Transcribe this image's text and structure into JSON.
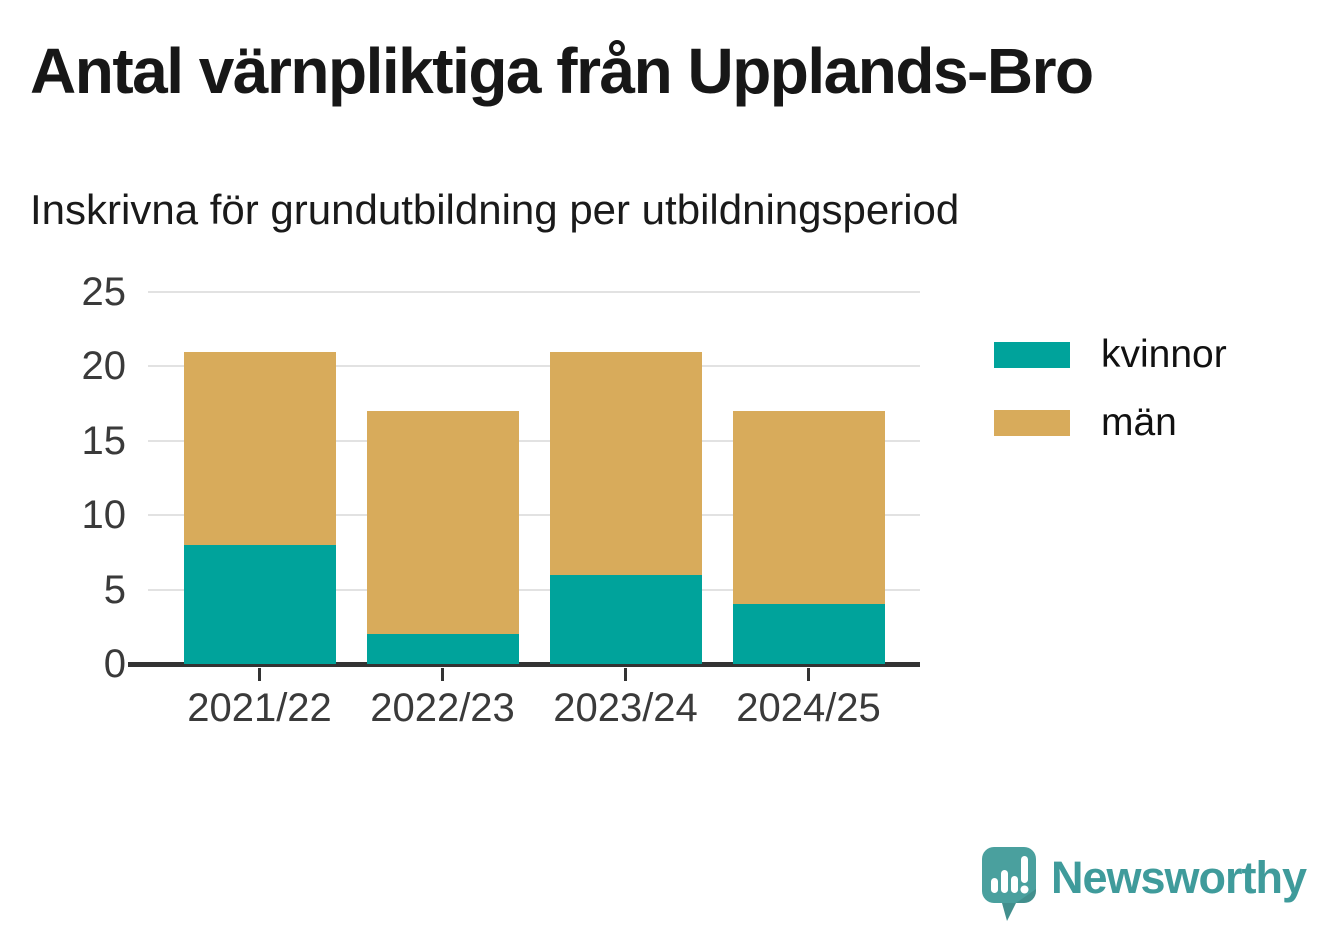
{
  "chart_data": {
    "type": "bar",
    "stacked": true,
    "title": "Antal värnpliktiga från Upplands-Bro",
    "subtitle": "Inskrivna för grundutbildning per utbildningsperiod",
    "categories": [
      "2021/22",
      "2022/23",
      "2023/24",
      "2024/25"
    ],
    "series": [
      {
        "name": "kvinnor",
        "color": "#00a39b",
        "values": [
          8,
          2,
          6,
          4
        ]
      },
      {
        "name": "män",
        "color": "#d8ab5b",
        "values": [
          13,
          15,
          15,
          13
        ]
      }
    ],
    "totals": [
      21,
      17,
      21,
      17
    ],
    "ylim": [
      0,
      25
    ],
    "yticks": [
      0,
      5,
      10,
      15,
      20,
      25
    ],
    "grid": "horizontal",
    "legend_position": "right",
    "colors": {
      "gridline": "#e2e2e2",
      "axis": "#333333",
      "tick_text": "#3a3a3a"
    }
  },
  "branding": {
    "logo_text": "Newsworthy",
    "brand_color": "#3f9b9b",
    "icon_color": "#4aa09e"
  }
}
